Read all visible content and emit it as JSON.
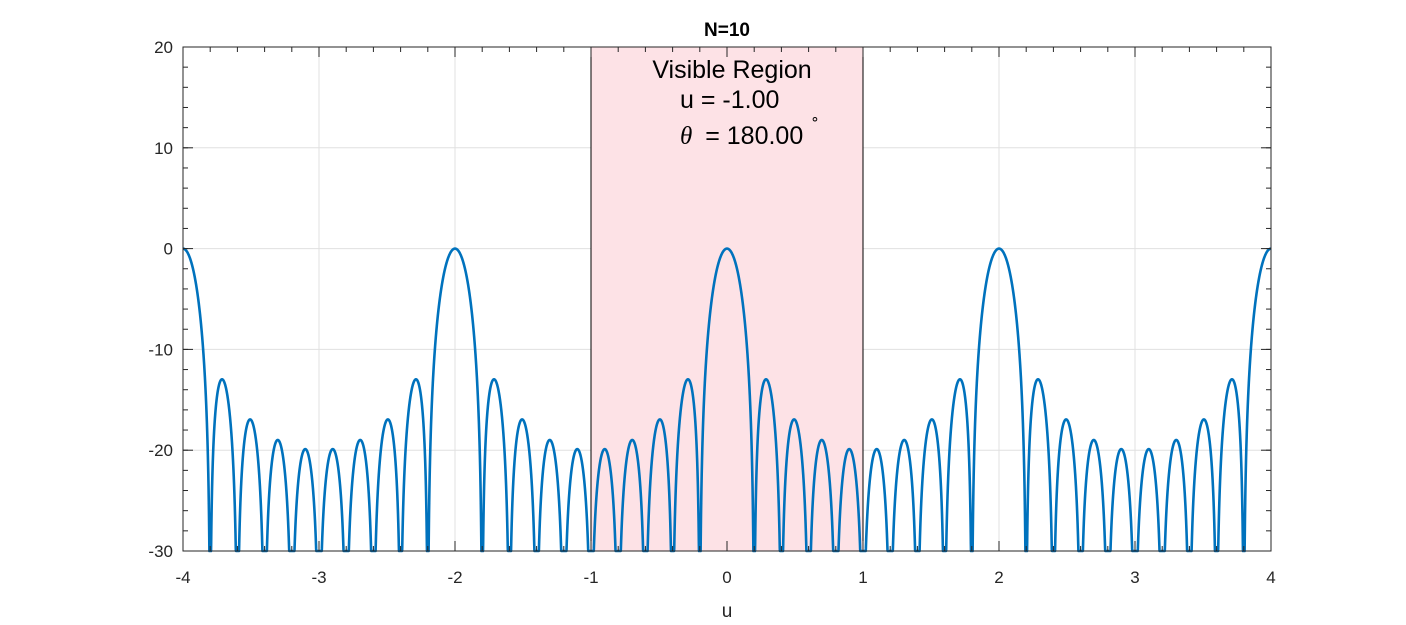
{
  "chart_data": {
    "type": "line",
    "title": "N=10",
    "xlabel": "u",
    "ylabel": "",
    "xlim": [
      -4,
      4
    ],
    "ylim": [
      -30,
      20
    ],
    "xticks": [
      "-4",
      "-3",
      "-2",
      "-1",
      "0",
      "1",
      "2",
      "3",
      "4"
    ],
    "yticks": [
      "20",
      "10",
      "0",
      "-10",
      "-20",
      "-30"
    ],
    "grid": true,
    "box": true,
    "series": [
      {
        "color": "#0072BD",
        "function": "20*log10(|sin(N*pi*u/2)/(N*sin(pi*u/2))|)",
        "N": 10,
        "floor": -30
      }
    ],
    "highlight_region": {
      "x": [
        -1,
        1
      ],
      "y": [
        -30,
        20
      ],
      "fill": "#FDE2E6",
      "edge": "#000000"
    },
    "annotation": {
      "line1": "Visible Region",
      "line2": "u = -1.00",
      "line3_symbol": "θ",
      "line3_value": "= 180.00",
      "line3_degree": "∘"
    }
  }
}
